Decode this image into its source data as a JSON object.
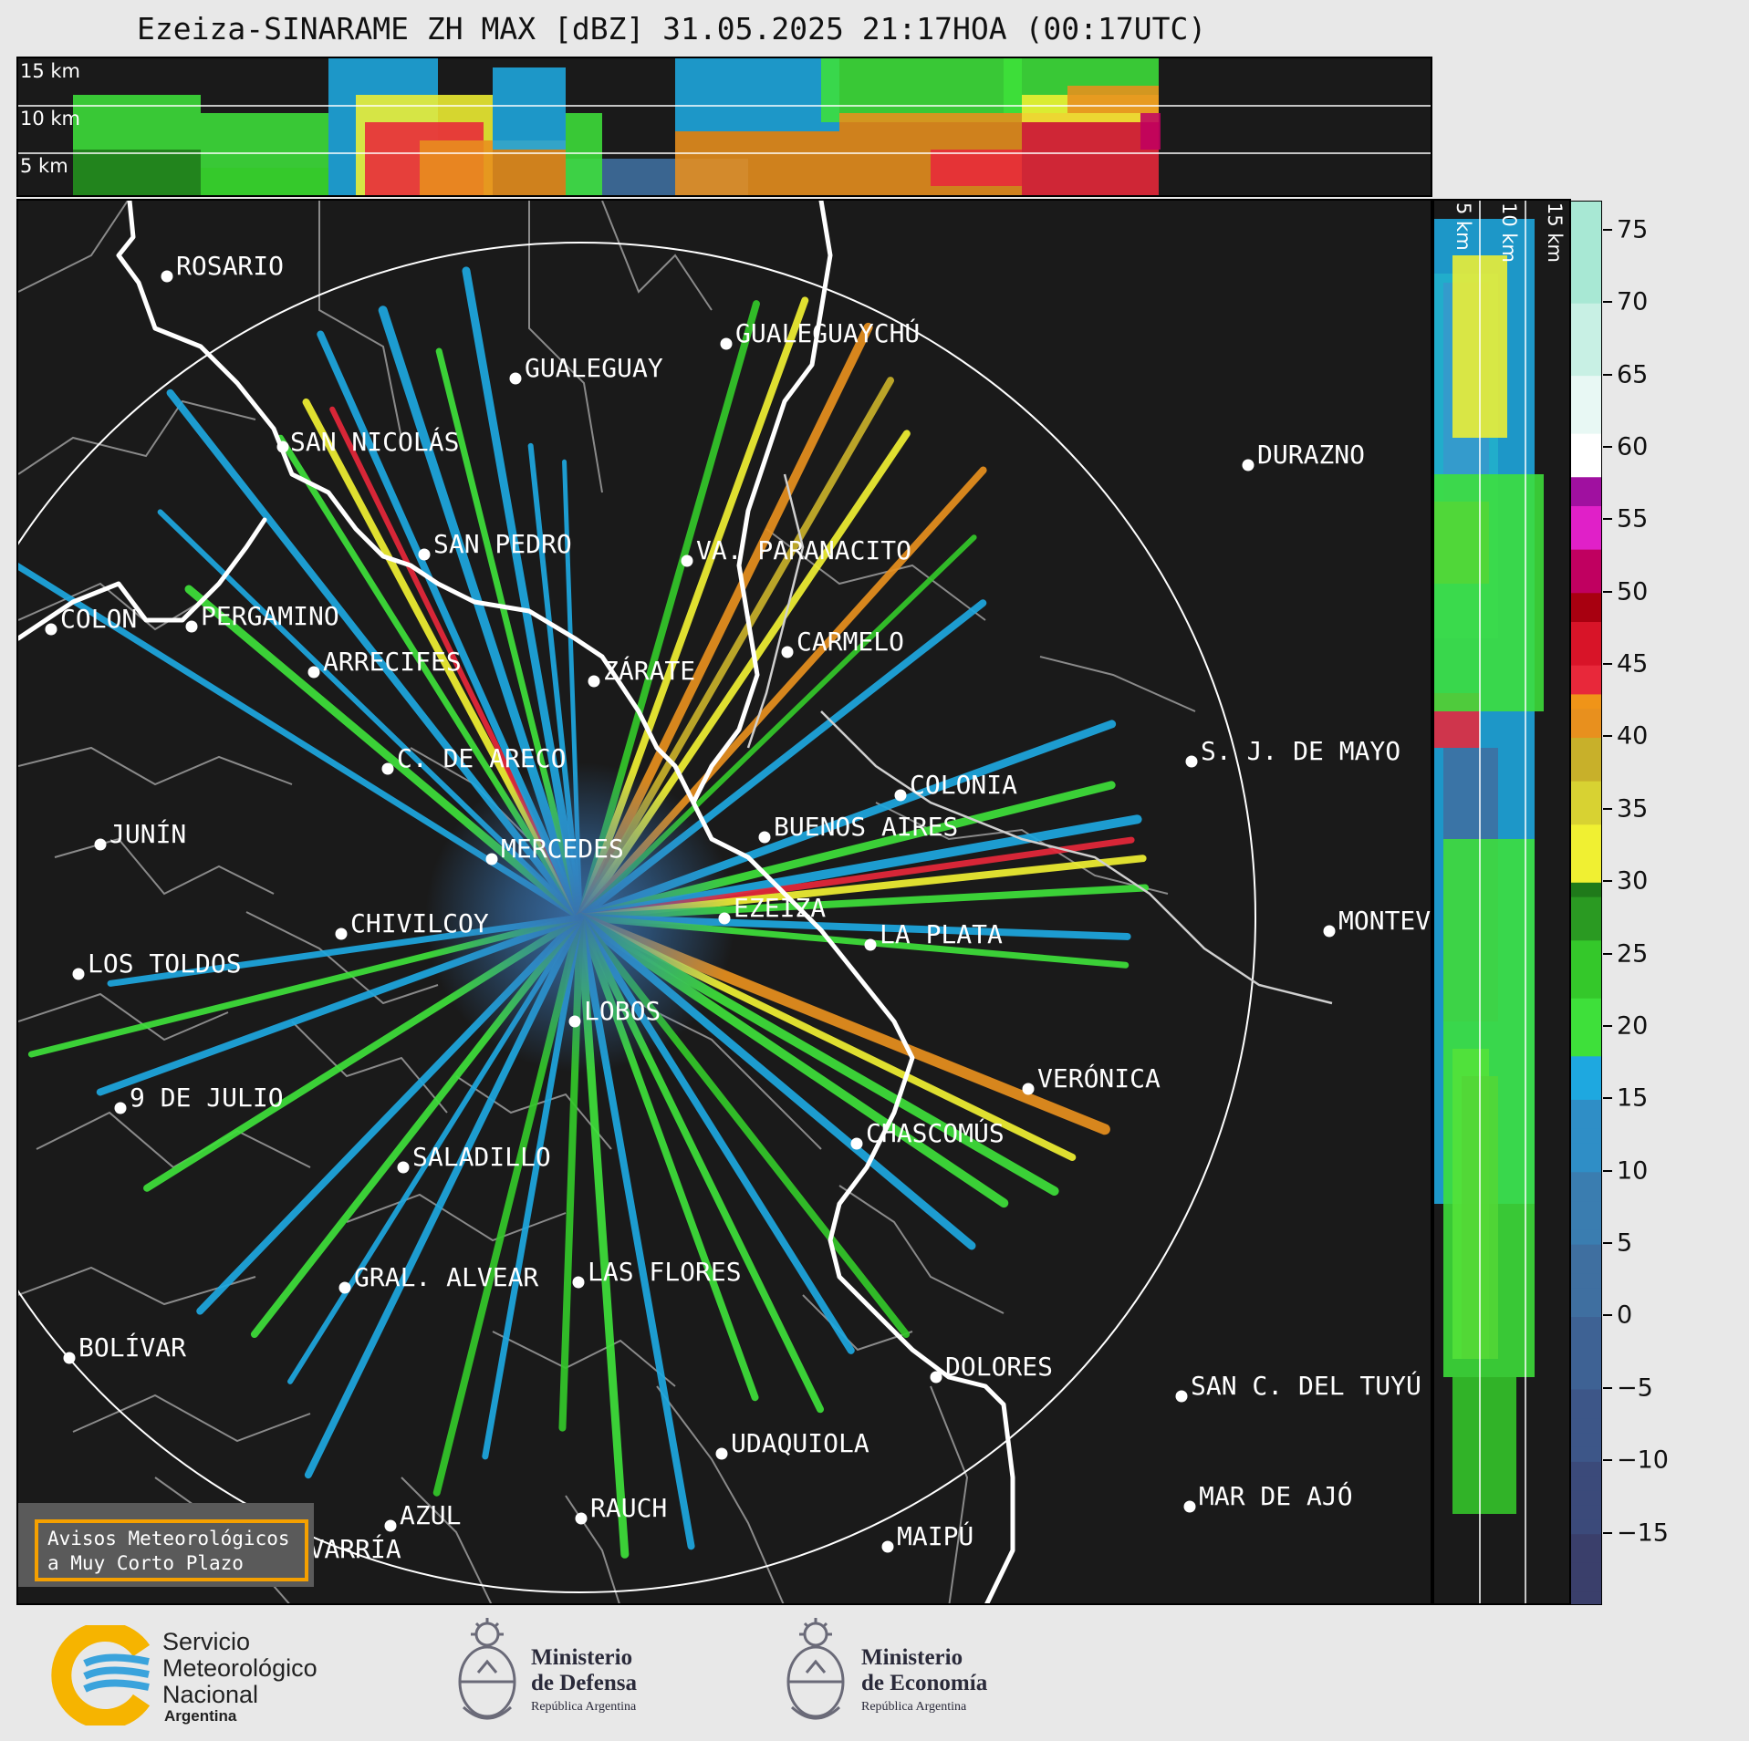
{
  "title": "Ezeiza-SINARAME ZH MAX [dBZ] 31.05.2025 21:17HOA (00:17UTC)",
  "height_labels": [
    "15 km",
    "10 km",
    "5 km"
  ],
  "cities": [
    {
      "name": "ROSARIO"
    },
    {
      "name": "GUALEGUAYCHÚ"
    },
    {
      "name": "GUALEGUAY"
    },
    {
      "name": "SAN NICOLÁS"
    },
    {
      "name": "DURAZNO"
    },
    {
      "name": "SAN PEDRO"
    },
    {
      "name": "VA. PARANACITO"
    },
    {
      "name": "COLON"
    },
    {
      "name": "PERGAMINO"
    },
    {
      "name": "CARMELO"
    },
    {
      "name": "ARRECIFES"
    },
    {
      "name": "ZÁRATE"
    },
    {
      "name": "S. J. DE MAYO"
    },
    {
      "name": "C. DE ARECO"
    },
    {
      "name": "COLONIA"
    },
    {
      "name": "JUNÍN"
    },
    {
      "name": "BUENOS AIRES"
    },
    {
      "name": "MERCEDES"
    },
    {
      "name": "EZEIZA"
    },
    {
      "name": "MONTEV"
    },
    {
      "name": "CHIVILCOY"
    },
    {
      "name": "LA PLATA"
    },
    {
      "name": "LOS TOLDOS"
    },
    {
      "name": "LOBOS"
    },
    {
      "name": "VERÓNICA"
    },
    {
      "name": "9 DE JULIO"
    },
    {
      "name": "CHASCOMÚS"
    },
    {
      "name": "SALADILLO"
    },
    {
      "name": "GRAL. ALVEAR"
    },
    {
      "name": "LAS FLORES"
    },
    {
      "name": "BOLÍVAR"
    },
    {
      "name": "DOLORES"
    },
    {
      "name": "SAN C. DEL TUYÚ"
    },
    {
      "name": "UDAQUIOLA"
    },
    {
      "name": "MAR DE AJÓ"
    },
    {
      "name": "AZUL"
    },
    {
      "name": "RAUCH"
    },
    {
      "name": "MAIPÚ"
    },
    {
      "name": "OLAVARRÍA"
    }
  ],
  "notice": {
    "line1": "Avisos Meteorológicos",
    "line2": "a Muy Corto Plazo"
  },
  "colorbar": {
    "unit": "dBZ",
    "ticks": [
      "75",
      "70",
      "65",
      "60",
      "55",
      "50",
      "45",
      "40",
      "35",
      "30",
      "25",
      "20",
      "15",
      "10",
      "5",
      "0",
      "−5",
      "−10",
      "−15"
    ],
    "range": [
      -20,
      77
    ]
  },
  "logos": {
    "smn": {
      "line1": "Servicio",
      "line2": "Meteorológico",
      "line3": "Nacional",
      "line4": "Argentina",
      "icon": "smn-logo-icon"
    },
    "defensa": {
      "line1": "Ministerio",
      "line2": "de Defensa",
      "line3": "República Argentina",
      "icon": "coat-of-arms-icon"
    },
    "economia": {
      "line1": "Ministerio",
      "line2": "de Economía",
      "line3": "República Argentina",
      "icon": "coat-of-arms-icon"
    }
  },
  "colors": {
    "background": "#1a1a1a",
    "coast": "#ffffff",
    "border": "#8a8a8a",
    "accent": "#f5a000"
  }
}
